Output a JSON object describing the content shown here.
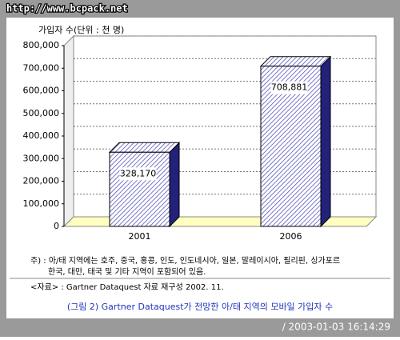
{
  "watermark": "http://www.bcpack.net",
  "chart_data": {
    "type": "bar3d",
    "y_axis_label": "가입자 수(단위 : 천 명)",
    "categories": [
      "2001",
      "2006"
    ],
    "values": [
      328170,
      708881
    ],
    "value_labels": [
      "328,170",
      "708,881"
    ],
    "color": "#3333aa",
    "ylim": [
      0,
      800000
    ],
    "yticks": [
      0,
      {
        "value": 100000,
        "label": "100,000"
      },
      {
        "value": 200000,
        "label": "200,000"
      },
      {
        "value": 300000,
        "label": "300,000"
      },
      {
        "value": 400000,
        "label": "400,000"
      },
      {
        "value": 500000,
        "label": "500,000"
      },
      {
        "value": 600000,
        "label": "600,000"
      },
      {
        "value": 700000,
        "label": "700,000"
      },
      {
        "value": 800000,
        "label": "800,000"
      }
    ],
    "grid": true
  },
  "notes": [
    "주) : 아/태 지역에는 호주, 중국, 홍콩, 인도, 인도네시아, 일본, 말레이시아, 필리핀, 싱가포르",
    "한국, 대만, 태국 및 기타 지역이 포함되어 있음."
  ],
  "source": "<자료> : Gartner Dataquest 자료 재구성 2002. 11.",
  "caption": "(그림 2) Gartner Dataquest가 전망한 아/태 지역의 모바일 가입자 수",
  "timestamp": "/ 2003-01-03 16:14:29"
}
